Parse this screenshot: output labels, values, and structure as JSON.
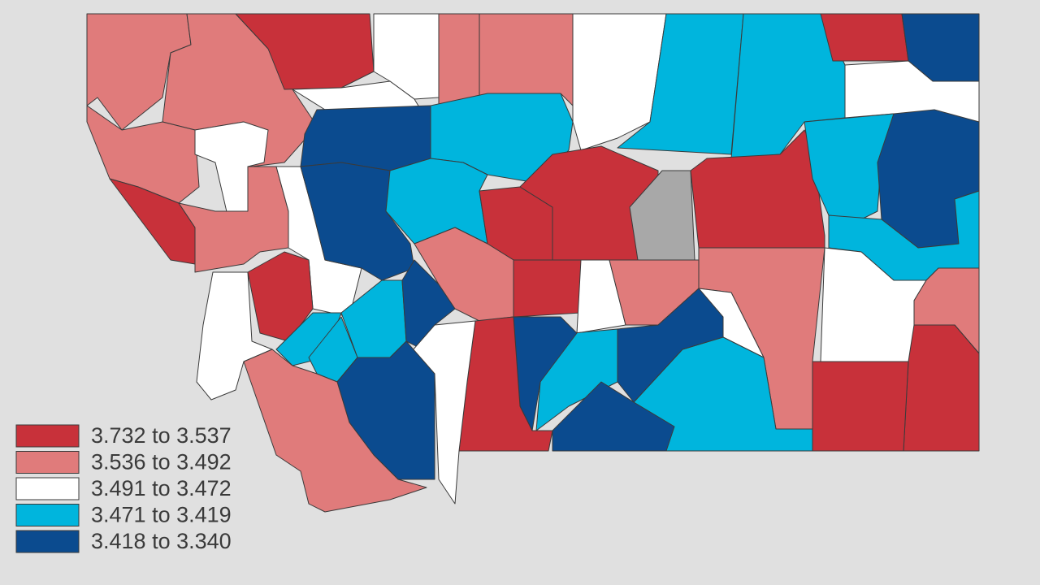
{
  "legend": {
    "items": [
      {
        "label": "3.732 to 3.537",
        "color": "#c8313a"
      },
      {
        "label": "3.536 to 3.492",
        "color": "#e07b7b"
      },
      {
        "label": "3.491 to 3.472",
        "color": "#ffffff"
      },
      {
        "label": "3.471 to 3.419",
        "color": "#00b5dd"
      },
      {
        "label": "3.418 to 3.340",
        "color": "#0b4b8f"
      }
    ]
  }
}
